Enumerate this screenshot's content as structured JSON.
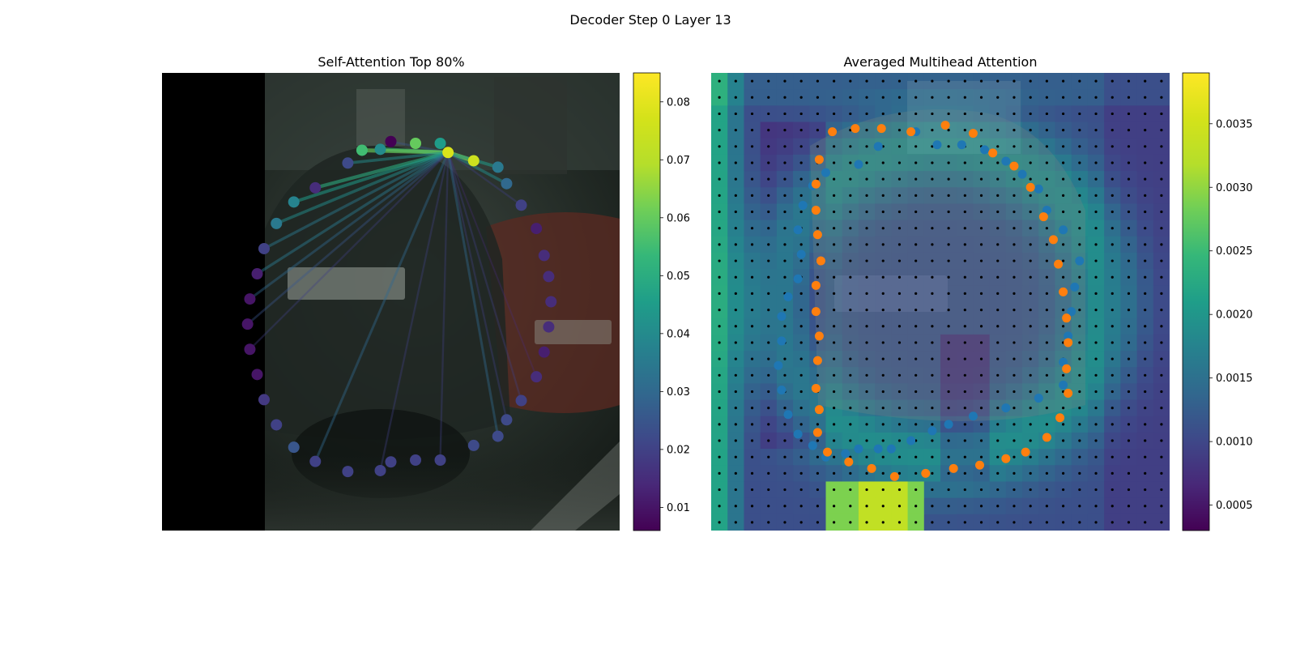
{
  "figure": {
    "title": "Decoder Step 0 Layer 13"
  },
  "chart_data": [
    {
      "type": "scatter",
      "title": "Self-Attention Top 80%",
      "xlim": [
        0,
        1
      ],
      "ylim": [
        0,
        1
      ],
      "grid": false,
      "colormap": "viridis",
      "colorbar": {
        "min": 0.006,
        "max": 0.085,
        "ticks": [
          0.01,
          0.02,
          0.03,
          0.04,
          0.05,
          0.06,
          0.07,
          0.08
        ],
        "labels": [
          "0.01",
          "0.02",
          "0.03",
          "0.04",
          "0.05",
          "0.06",
          "0.07",
          "0.08"
        ]
      },
      "query_index": 5,
      "points": [
        {
          "x": 0.5,
          "y": 0.15,
          "w": 0.006
        },
        {
          "x": 0.554,
          "y": 0.154,
          "w": 0.06
        },
        {
          "x": 0.608,
          "y": 0.154,
          "w": 0.045
        },
        {
          "x": 0.477,
          "y": 0.167,
          "w": 0.04
        },
        {
          "x": 0.437,
          "y": 0.169,
          "w": 0.055
        },
        {
          "x": 0.625,
          "y": 0.174,
          "w": 0.078
        },
        {
          "x": 0.681,
          "y": 0.192,
          "w": 0.075
        },
        {
          "x": 0.406,
          "y": 0.197,
          "w": 0.022
        },
        {
          "x": 0.734,
          "y": 0.206,
          "w": 0.035
        },
        {
          "x": 0.753,
          "y": 0.242,
          "w": 0.03
        },
        {
          "x": 0.335,
          "y": 0.251,
          "w": 0.015
        },
        {
          "x": 0.288,
          "y": 0.282,
          "w": 0.038
        },
        {
          "x": 0.785,
          "y": 0.289,
          "w": 0.02
        },
        {
          "x": 0.25,
          "y": 0.329,
          "w": 0.035
        },
        {
          "x": 0.818,
          "y": 0.34,
          "w": 0.012
        },
        {
          "x": 0.223,
          "y": 0.384,
          "w": 0.02
        },
        {
          "x": 0.835,
          "y": 0.399,
          "w": 0.015
        },
        {
          "x": 0.208,
          "y": 0.439,
          "w": 0.012
        },
        {
          "x": 0.845,
          "y": 0.445,
          "w": 0.015
        },
        {
          "x": 0.192,
          "y": 0.494,
          "w": 0.01
        },
        {
          "x": 0.85,
          "y": 0.5,
          "w": 0.015
        },
        {
          "x": 0.187,
          "y": 0.549,
          "w": 0.01
        },
        {
          "x": 0.845,
          "y": 0.555,
          "w": 0.015
        },
        {
          "x": 0.192,
          "y": 0.604,
          "w": 0.01
        },
        {
          "x": 0.835,
          "y": 0.61,
          "w": 0.012
        },
        {
          "x": 0.208,
          "y": 0.659,
          "w": 0.01
        },
        {
          "x": 0.818,
          "y": 0.664,
          "w": 0.015
        },
        {
          "x": 0.223,
          "y": 0.714,
          "w": 0.018
        },
        {
          "x": 0.785,
          "y": 0.716,
          "w": 0.02
        },
        {
          "x": 0.25,
          "y": 0.769,
          "w": 0.02
        },
        {
          "x": 0.753,
          "y": 0.758,
          "w": 0.022
        },
        {
          "x": 0.288,
          "y": 0.818,
          "w": 0.025
        },
        {
          "x": 0.734,
          "y": 0.794,
          "w": 0.022
        },
        {
          "x": 0.681,
          "y": 0.814,
          "w": 0.022
        },
        {
          "x": 0.335,
          "y": 0.849,
          "w": 0.02
        },
        {
          "x": 0.406,
          "y": 0.871,
          "w": 0.02
        },
        {
          "x": 0.477,
          "y": 0.869,
          "w": 0.02
        },
        {
          "x": 0.554,
          "y": 0.846,
          "w": 0.02
        },
        {
          "x": 0.608,
          "y": 0.846,
          "w": 0.02
        },
        {
          "x": 0.5,
          "y": 0.85,
          "w": 0.02
        }
      ],
      "edges": [
        {
          "to": 0,
          "w": 0.025
        },
        {
          "to": 3,
          "w": 0.055
        },
        {
          "to": 4,
          "w": 0.06
        },
        {
          "to": 5,
          "w": 0.075
        },
        {
          "to": 6,
          "w": 0.065
        },
        {
          "to": 7,
          "w": 0.04
        },
        {
          "to": 8,
          "w": 0.045
        },
        {
          "to": 9,
          "w": 0.04
        },
        {
          "to": 10,
          "w": 0.05
        },
        {
          "to": 11,
          "w": 0.045
        },
        {
          "to": 12,
          "w": 0.02
        },
        {
          "to": 13,
          "w": 0.04
        },
        {
          "to": 15,
          "w": 0.035
        },
        {
          "to": 17,
          "w": 0.035
        },
        {
          "to": 19,
          "w": 0.03
        },
        {
          "to": 21,
          "w": 0.025
        },
        {
          "to": 23,
          "w": 0.02
        },
        {
          "to": 26,
          "w": 0.015
        },
        {
          "to": 28,
          "w": 0.02
        },
        {
          "to": 30,
          "w": 0.02
        },
        {
          "to": 32,
          "w": 0.03
        },
        {
          "to": 34,
          "w": 0.03
        },
        {
          "to": 36,
          "w": 0.02
        },
        {
          "to": 38,
          "w": 0.02
        }
      ]
    },
    {
      "type": "heatmap",
      "title": "Averaged Multihead Attention",
      "xlim": [
        0,
        28
      ],
      "ylim": [
        0,
        28
      ],
      "grid_size": 28,
      "colormap": "viridis",
      "colorbar": {
        "min": 0.0003,
        "max": 0.0039,
        "ticks": [
          0.0005,
          0.001,
          0.0015,
          0.002,
          0.0025,
          0.003,
          0.0035
        ],
        "labels": [
          "0.0005",
          "0.0010",
          "0.0015",
          "0.0020",
          "0.0025",
          "0.0030",
          "0.0035"
        ]
      },
      "series": [
        {
          "color": "#1f77b4",
          "points": [
            [
              12.5,
              3.6
            ],
            [
              10.2,
              4.5
            ],
            [
              9.0,
              5.6
            ],
            [
              7.0,
              6.1
            ],
            [
              6.2,
              6.9
            ],
            [
              5.6,
              8.1
            ],
            [
              5.3,
              9.6
            ],
            [
              5.5,
              11.1
            ],
            [
              5.3,
              12.6
            ],
            [
              4.7,
              13.7
            ],
            [
              4.3,
              14.9
            ],
            [
              4.3,
              16.4
            ],
            [
              4.1,
              17.9
            ],
            [
              4.3,
              19.4
            ],
            [
              4.7,
              20.9
            ],
            [
              5.3,
              22.1
            ],
            [
              6.2,
              22.8
            ],
            [
              7.0,
              23.5
            ],
            [
              8.2,
              23.3
            ],
            [
              9.0,
              23.0
            ],
            [
              10.2,
              23.0
            ],
            [
              11.0,
              23.0
            ],
            [
              12.2,
              22.5
            ],
            [
              13.5,
              21.9
            ],
            [
              14.5,
              21.5
            ],
            [
              16.0,
              21.0
            ],
            [
              18.0,
              20.5
            ],
            [
              20.0,
              19.9
            ],
            [
              21.5,
              19.1
            ],
            [
              21.5,
              17.7
            ],
            [
              21.8,
              16.1
            ],
            [
              22.0,
              14.6
            ],
            [
              22.2,
              13.1
            ],
            [
              22.5,
              11.5
            ],
            [
              21.5,
              9.6
            ],
            [
              20.5,
              8.4
            ],
            [
              20.0,
              7.1
            ],
            [
              19.0,
              6.2
            ],
            [
              18.0,
              5.4
            ],
            [
              16.7,
              4.7
            ],
            [
              15.3,
              4.4
            ],
            [
              13.8,
              4.4
            ]
          ]
        },
        {
          "color": "#ff7f0e",
          "points": [
            [
              14.3,
              3.2
            ],
            [
              16.0,
              3.7
            ],
            [
              17.2,
              4.9
            ],
            [
              18.5,
              5.7
            ],
            [
              19.5,
              7.0
            ],
            [
              20.3,
              8.8
            ],
            [
              20.9,
              10.2
            ],
            [
              21.2,
              11.7
            ],
            [
              21.5,
              13.4
            ],
            [
              21.7,
              15.0
            ],
            [
              21.8,
              16.5
            ],
            [
              21.7,
              18.1
            ],
            [
              21.8,
              19.6
            ],
            [
              21.3,
              21.1
            ],
            [
              20.5,
              22.3
            ],
            [
              19.2,
              23.2
            ],
            [
              18.0,
              23.6
            ],
            [
              16.4,
              24.0
            ],
            [
              14.8,
              24.2
            ],
            [
              13.1,
              24.5
            ],
            [
              11.2,
              24.7
            ],
            [
              9.8,
              24.2
            ],
            [
              8.4,
              23.8
            ],
            [
              7.1,
              23.2
            ],
            [
              6.5,
              22.0
            ],
            [
              6.6,
              20.6
            ],
            [
              6.4,
              19.3
            ],
            [
              6.5,
              17.6
            ],
            [
              6.6,
              16.1
            ],
            [
              6.4,
              14.6
            ],
            [
              6.4,
              13.0
            ],
            [
              6.7,
              11.5
            ],
            [
              6.5,
              9.9
            ],
            [
              6.4,
              8.4
            ],
            [
              6.4,
              6.8
            ],
            [
              6.6,
              5.3
            ],
            [
              7.4,
              3.6
            ],
            [
              8.8,
              3.4
            ],
            [
              10.4,
              3.4
            ],
            [
              12.2,
              3.6
            ]
          ]
        }
      ]
    }
  ]
}
